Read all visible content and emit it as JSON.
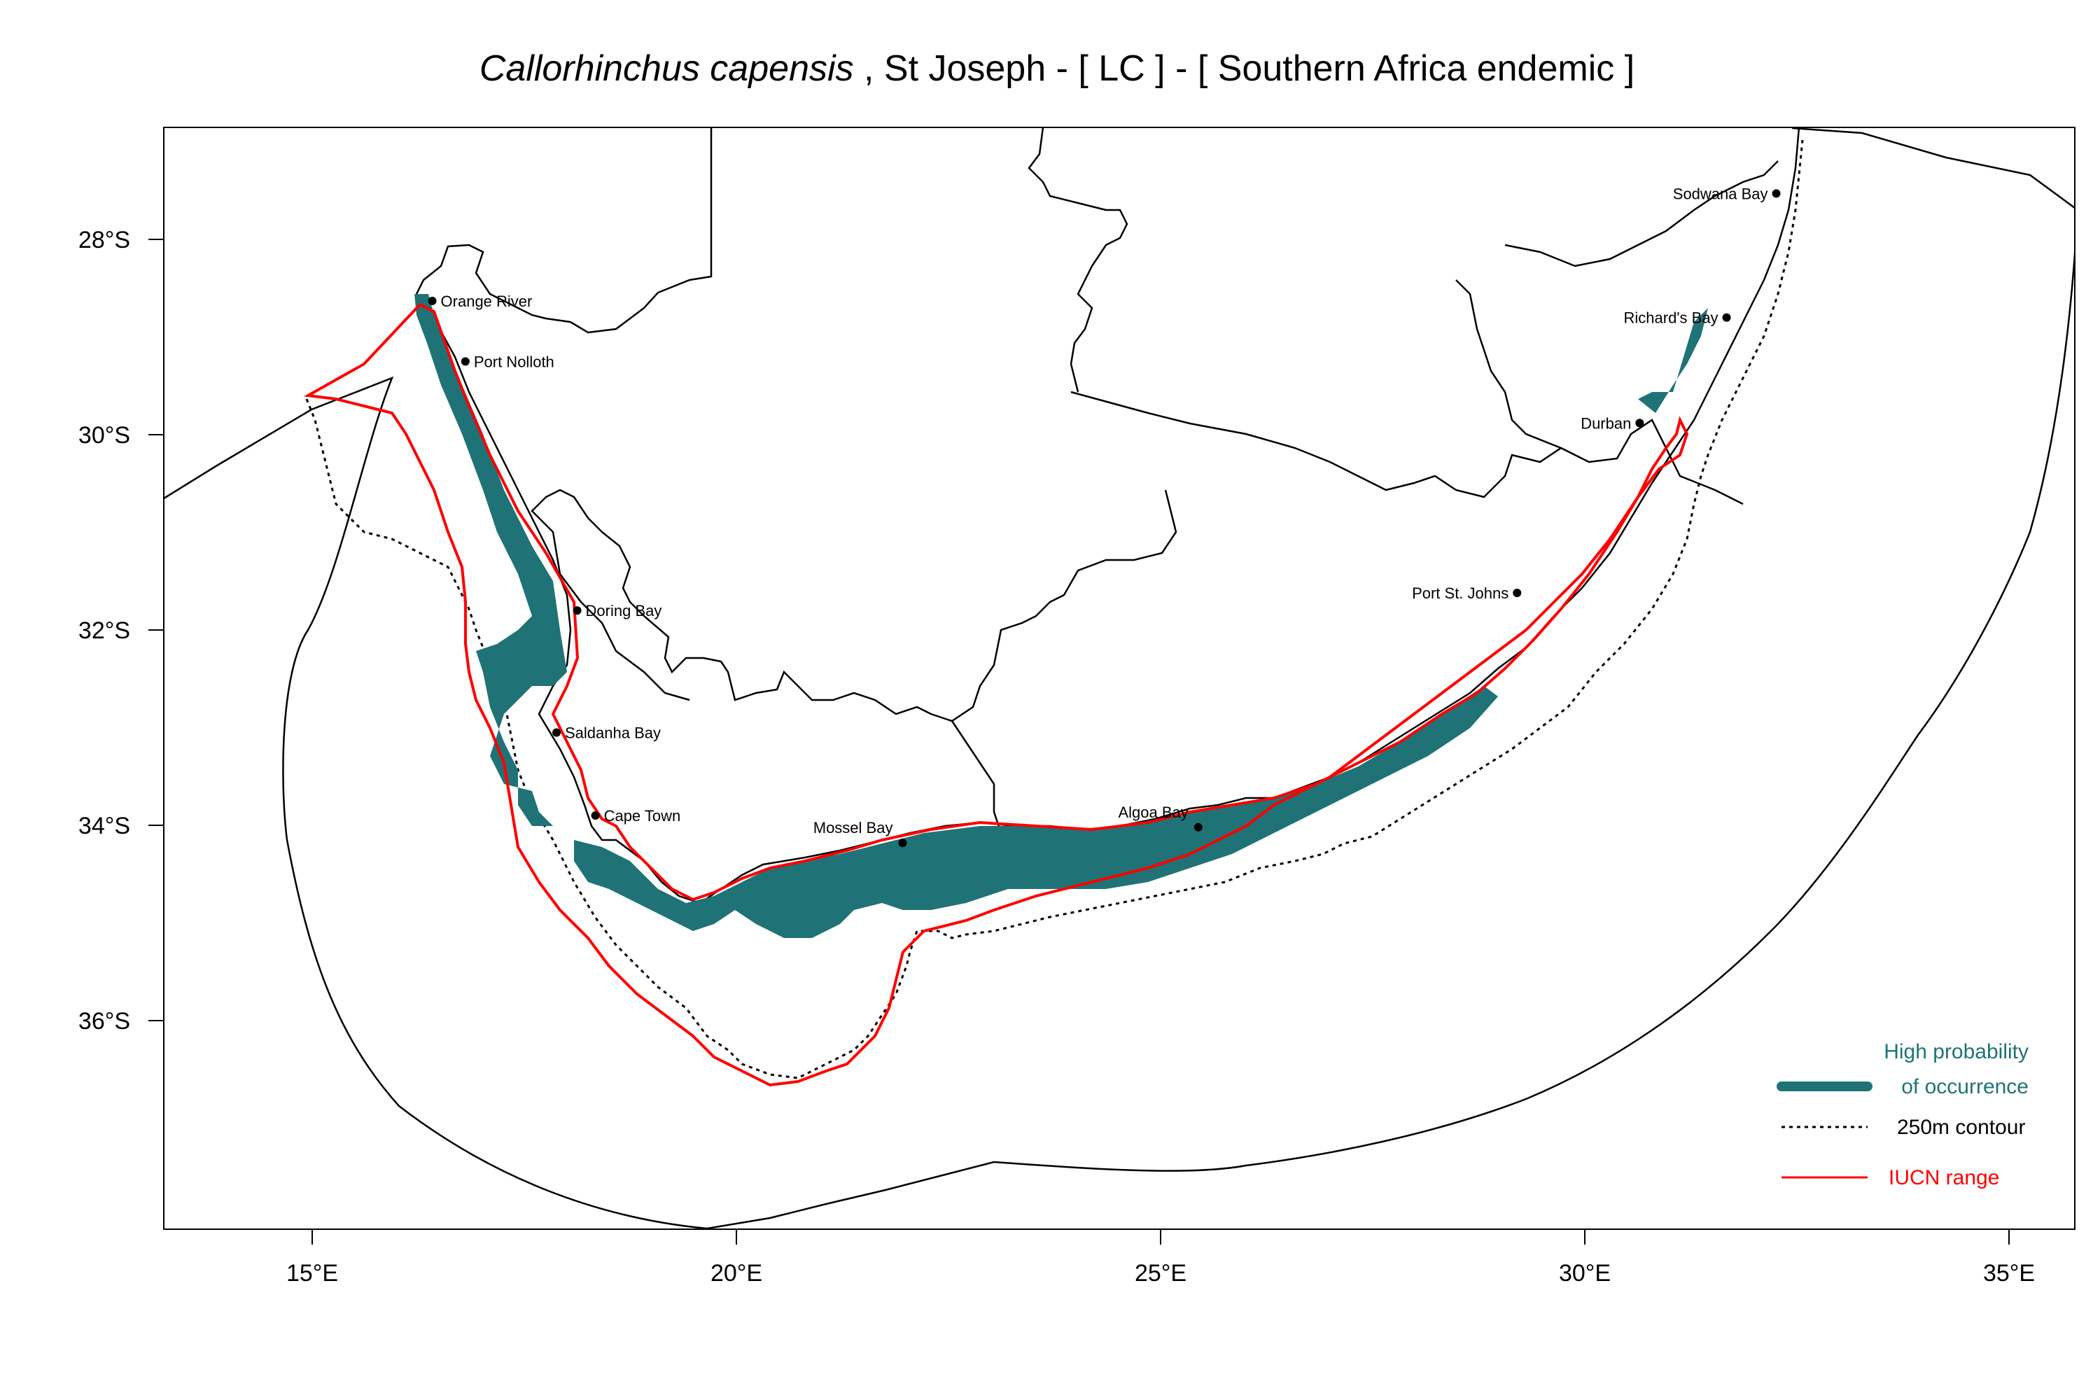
{
  "title": {
    "species": "Callorhinchus capensis",
    "rest": " , St Joseph  - [ LC ] - [ Southern Africa endemic ]"
  },
  "axes": {
    "x_ticks": [
      {
        "lon": 15,
        "label": "15°E"
      },
      {
        "lon": 20,
        "label": "20°E"
      },
      {
        "lon": 25,
        "label": "25°E"
      },
      {
        "lon": 30,
        "label": "30°E"
      },
      {
        "lon": 35,
        "label": "35°E"
      }
    ],
    "y_ticks": [
      {
        "lat": -28,
        "label": "28°S"
      },
      {
        "lat": -30,
        "label": "30°S"
      },
      {
        "lat": -32,
        "label": "32°S"
      },
      {
        "lat": -34,
        "label": "34°S"
      },
      {
        "lat": -36,
        "label": "36°S"
      }
    ],
    "lon_range": [
      13.4,
      36.6
    ],
    "lat_range": [
      -38.2,
      -26.9
    ]
  },
  "places": [
    {
      "name": "Orange River",
      "lon": 16.45,
      "lat": -28.63,
      "side": "right"
    },
    {
      "name": "Port Nolloth",
      "lon": 16.85,
      "lat": -29.25,
      "side": "right"
    },
    {
      "name": "Doring Bay",
      "lon": 18.2,
      "lat": -31.8,
      "side": "right"
    },
    {
      "name": "Saldanha Bay",
      "lon": 17.95,
      "lat": -33.05,
      "side": "right"
    },
    {
      "name": "Cape Town",
      "lon": 18.42,
      "lat": -33.9,
      "side": "right"
    },
    {
      "name": "Mossel Bay",
      "lon": 22.13,
      "lat": -34.18,
      "side": "left-above"
    },
    {
      "name": "Algoa Bay",
      "lon": 25.7,
      "lat": -34.02,
      "side": "left-above"
    },
    {
      "name": "Port St. Johns",
      "lon": 29.55,
      "lat": -31.62,
      "side": "left"
    },
    {
      "name": "Durban",
      "lon": 31.03,
      "lat": -29.88,
      "side": "left"
    },
    {
      "name": "Richard's Bay",
      "lon": 32.08,
      "lat": -28.8,
      "side": "left"
    },
    {
      "name": "Sodwana Bay",
      "lon": 32.68,
      "lat": -27.53,
      "side": "left"
    }
  ],
  "legend": {
    "occurrence_line1": "High probability",
    "occurrence_line2": "of occurrence",
    "contour_label": "250m contour",
    "iucn_label": "IUCN range"
  },
  "colors": {
    "occurrence": "#1f7377",
    "iucn": "#ff0000",
    "boundary": "#000000"
  }
}
